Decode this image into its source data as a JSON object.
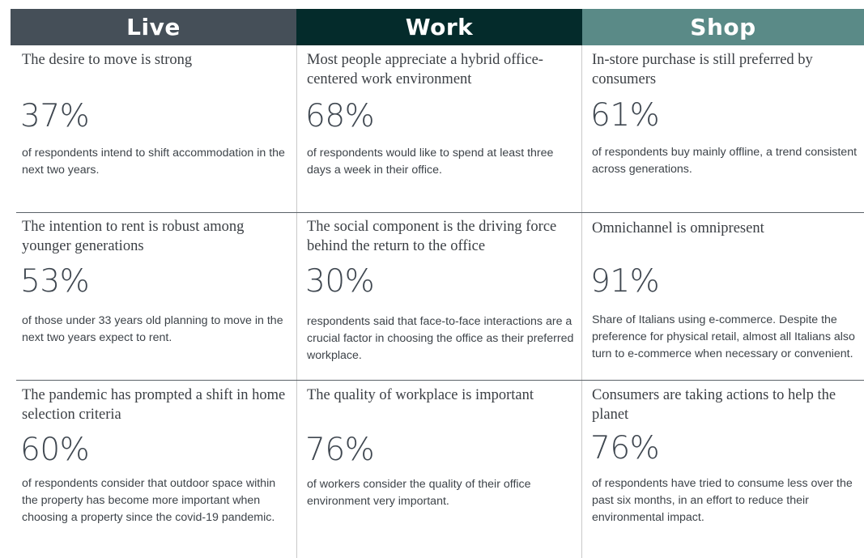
{
  "headers": {
    "live": "Live",
    "work": "Work",
    "shop": "Shop"
  },
  "rows": [
    {
      "live": {
        "title": "The desire to move is strong",
        "stat": "37%",
        "desc": "of respondents intend to shift accommodation in the next two years."
      },
      "work": {
        "title": "Most people appreciate a hybrid office-centered work environment",
        "stat": "68%",
        "desc": "of respondents would like to spend at least three days a week in their office."
      },
      "shop": {
        "title": "In-store purchase is still preferred by consumers",
        "stat": "61%",
        "desc": "of respondents buy mainly offline, a trend consistent across generations."
      }
    },
    {
      "live": {
        "title": "The intention to rent is robust among younger generations",
        "stat": "53%",
        "desc": "of those under 33 years old planning to move in the next two years expect to rent."
      },
      "work": {
        "title": "The social component is the driving force behind the return to the office",
        "stat": "30%",
        "desc": "respondents said that face-to-face interactions are a crucial factor in choosing the office as their preferred workplace."
      },
      "shop": {
        "title": "Omnichannel is omnipresent",
        "stat": "91%",
        "desc": "Share of Italians using e-commerce. Despite the preference for physical retail, almost all Italians also turn to e-commerce when necessary or convenient."
      }
    },
    {
      "live": {
        "title": "The pandemic has prompted a shift in home selection criteria",
        "stat": "60%",
        "desc": "of respondents consider that outdoor space within the property has become more important when choosing a property since the covid-19 pandemic."
      },
      "work": {
        "title": "The quality of workplace is important",
        "stat": "76%",
        "desc": "of workers consider the quality of their office environment very important."
      },
      "shop": {
        "title": "Consumers are taking actions to help the planet",
        "stat": "76%",
        "desc": "of respondents have tried to consume less over the past six months, in an effort to reduce their environmental impact."
      }
    }
  ],
  "colors": {
    "live_header": "#454f58",
    "work_header": "#042b2b",
    "shop_header": "#5a8a87"
  }
}
